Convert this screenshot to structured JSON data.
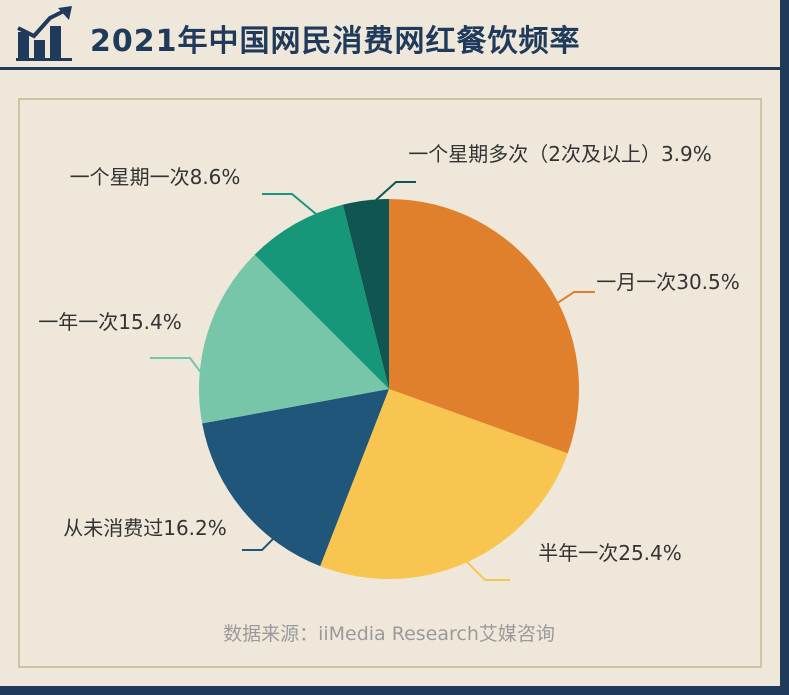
{
  "header": {
    "title": "2021年中国网民消费网红餐饮频率"
  },
  "source": "数据来源：iiMedia Research艾媒咨询",
  "chart_data": {
    "type": "pie",
    "title": "2021年中国网民消费网红餐饮频率",
    "slices": [
      {
        "label": "一月一次30.5%",
        "value": 30.5,
        "color": "#e0802c"
      },
      {
        "label": "半年一次25.4%",
        "value": 25.4,
        "color": "#f8c551"
      },
      {
        "label": "从未消费过16.2%",
        "value": 16.2,
        "color": "#20567a"
      },
      {
        "label": "一年一次15.4%",
        "value": 15.4,
        "color": "#77c6a9"
      },
      {
        "label": "一个星期一次8.6%",
        "value": 8.6,
        "color": "#179779"
      },
      {
        "label": "一个星期多次（2次及以上）3.9%",
        "value": 3.9,
        "color": "#0f5652"
      }
    ]
  }
}
